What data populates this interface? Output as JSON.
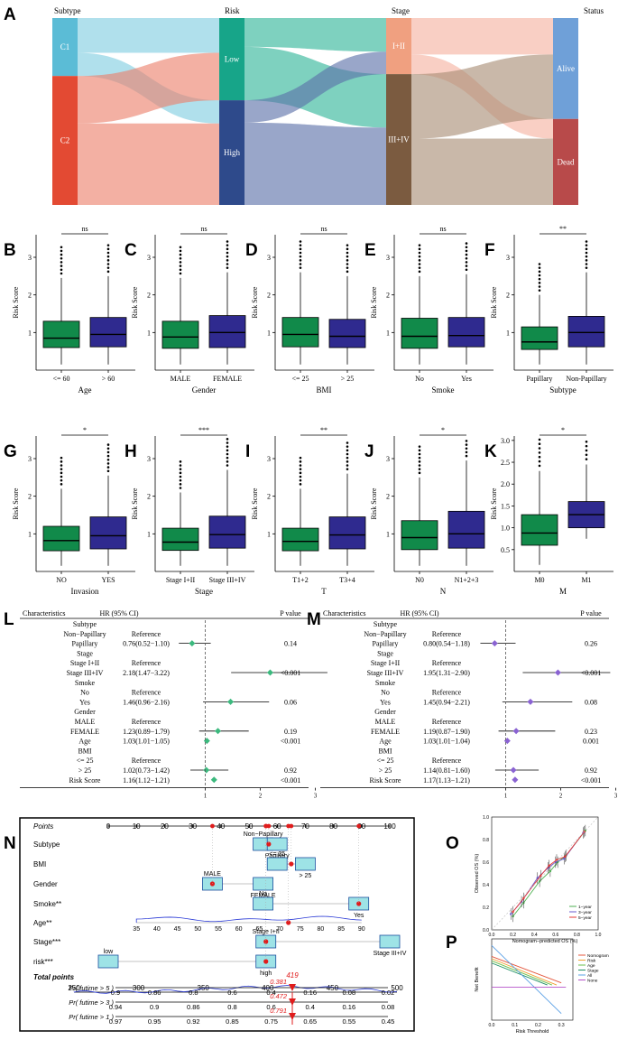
{
  "figure": {
    "panel_letters": [
      "A",
      "B",
      "C",
      "D",
      "E",
      "F",
      "G",
      "H",
      "I",
      "J",
      "K",
      "L",
      "M",
      "N",
      "O",
      "P"
    ]
  },
  "chart_data": [
    {
      "id": "A",
      "type": "sankey",
      "axes": [
        {
          "title": "Subtype",
          "nodes": [
            {
              "label": "C1",
              "color": "#5bbcd6"
            },
            {
              "label": "C2",
              "color": "#e34a33"
            }
          ]
        },
        {
          "title": "Risk",
          "nodes": [
            {
              "label": "Low",
              "color": "#17a589"
            },
            {
              "label": "High",
              "color": "#2e4a8b"
            }
          ]
        },
        {
          "title": "Stage",
          "nodes": [
            {
              "label": "I+II",
              "color": "#f0a080"
            },
            {
              "label": "III+IV",
              "color": "#7b5b40"
            }
          ]
        },
        {
          "title": "Status",
          "nodes": [
            {
              "label": "Alive",
              "color": "#6fa0d8"
            },
            {
              "label": "Dead",
              "color": "#b84a4a"
            }
          ]
        }
      ],
      "proportions": {
        "subtype": [
          0.31,
          0.69
        ],
        "risk": [
          0.44,
          0.56
        ],
        "stage": [
          0.3,
          0.7
        ],
        "status": [
          0.54,
          0.46
        ]
      }
    },
    {
      "type": "boxplot_group",
      "ylabel": "Risk Score",
      "yticks": [
        1,
        2,
        3
      ],
      "low_color": "#118a4a",
      "high_color": "#2f2a8f",
      "panels": [
        {
          "id": "B",
          "xlabel": "Age",
          "categories": [
            "<= 60",
            "> 60"
          ],
          "sig": "ns",
          "ylim": [
            0,
            3.6
          ],
          "boxes": [
            {
              "q1": 0.6,
              "med": 0.85,
              "q3": 1.3,
              "lo": 0.15,
              "hi": 2.45
            },
            {
              "q1": 0.62,
              "med": 0.95,
              "q3": 1.4,
              "lo": 0.15,
              "hi": 2.5
            }
          ]
        },
        {
          "id": "C",
          "xlabel": "Gender",
          "categories": [
            "MALE",
            "FEMALE"
          ],
          "sig": "ns",
          "ylim": [
            0,
            3.6
          ],
          "boxes": [
            {
              "q1": 0.58,
              "med": 0.88,
              "q3": 1.3,
              "lo": 0.15,
              "hi": 2.45
            },
            {
              "q1": 0.6,
              "med": 1.0,
              "q3": 1.45,
              "lo": 0.15,
              "hi": 2.6
            }
          ]
        },
        {
          "id": "D",
          "xlabel": "BMI",
          "categories": [
            "<= 25",
            "> 25"
          ],
          "sig": "ns",
          "ylim": [
            0,
            3.6
          ],
          "boxes": [
            {
              "q1": 0.62,
              "med": 0.95,
              "q3": 1.4,
              "lo": 0.15,
              "hi": 2.6
            },
            {
              "q1": 0.6,
              "med": 0.9,
              "q3": 1.35,
              "lo": 0.15,
              "hi": 2.5
            }
          ]
        },
        {
          "id": "E",
          "xlabel": "Smoke",
          "categories": [
            "No",
            "Yes"
          ],
          "sig": "ns",
          "ylim": [
            0,
            3.6
          ],
          "boxes": [
            {
              "q1": 0.58,
              "med": 0.9,
              "q3": 1.38,
              "lo": 0.15,
              "hi": 2.5
            },
            {
              "q1": 0.62,
              "med": 0.92,
              "q3": 1.4,
              "lo": 0.15,
              "hi": 2.55
            }
          ]
        },
        {
          "id": "F",
          "xlabel": "Subtype",
          "categories": [
            "Papillary",
            "Non-Papillary"
          ],
          "sig": "**",
          "ylim": [
            0,
            3.6
          ],
          "boxes": [
            {
              "q1": 0.55,
              "med": 0.75,
              "q3": 1.15,
              "lo": 0.15,
              "hi": 2.0
            },
            {
              "q1": 0.62,
              "med": 1.0,
              "q3": 1.43,
              "lo": 0.15,
              "hi": 2.6
            }
          ]
        },
        {
          "id": "G",
          "xlabel": "Invasion",
          "categories": [
            "NO",
            "YES"
          ],
          "sig": "*",
          "ylim": [
            0,
            3.6
          ],
          "boxes": [
            {
              "q1": 0.55,
              "med": 0.82,
              "q3": 1.2,
              "lo": 0.15,
              "hi": 2.2
            },
            {
              "q1": 0.6,
              "med": 0.95,
              "q3": 1.45,
              "lo": 0.15,
              "hi": 2.55
            }
          ]
        },
        {
          "id": "H",
          "xlabel": "Stage",
          "categories": [
            "Stage I+II",
            "Stage III+IV"
          ],
          "sig": "***",
          "ylim": [
            0,
            3.6
          ],
          "boxes": [
            {
              "q1": 0.56,
              "med": 0.78,
              "q3": 1.15,
              "lo": 0.15,
              "hi": 2.1
            },
            {
              "q1": 0.62,
              "med": 0.98,
              "q3": 1.47,
              "lo": 0.15,
              "hi": 2.7
            }
          ]
        },
        {
          "id": "I",
          "xlabel": "T",
          "categories": [
            "T1+2",
            "T3+4"
          ],
          "sig": "**",
          "ylim": [
            0,
            3.6
          ],
          "boxes": [
            {
              "q1": 0.55,
              "med": 0.8,
              "q3": 1.15,
              "lo": 0.15,
              "hi": 2.2
            },
            {
              "q1": 0.6,
              "med": 0.97,
              "q3": 1.45,
              "lo": 0.15,
              "hi": 2.6
            }
          ]
        },
        {
          "id": "J",
          "xlabel": "N",
          "categories": [
            "N0",
            "N1+2+3"
          ],
          "sig": "*",
          "ylim": [
            0,
            3.6
          ],
          "boxes": [
            {
              "q1": 0.58,
              "med": 0.9,
              "q3": 1.35,
              "lo": 0.15,
              "hi": 2.5
            },
            {
              "q1": 0.62,
              "med": 1.0,
              "q3": 1.6,
              "lo": 0.15,
              "hi": 2.95
            }
          ]
        },
        {
          "id": "K",
          "xlabel": "M",
          "categories": [
            "M0",
            "M1"
          ],
          "sig": "*",
          "ylim": [
            0,
            3.1
          ],
          "yticks": [
            0.5,
            1.0,
            1.5,
            2.0,
            2.5,
            3.0
          ],
          "tick_labels": [
            "0.5",
            "1.0",
            "1.5",
            "2.0",
            "2.5",
            "3.0"
          ],
          "boxes": [
            {
              "q1": 0.6,
              "med": 0.88,
              "q3": 1.3,
              "lo": 0.15,
              "hi": 2.3
            },
            {
              "q1": 1.0,
              "med": 1.3,
              "q3": 1.6,
              "lo": 0.75,
              "hi": 2.45
            }
          ]
        }
      ]
    },
    {
      "id": "L",
      "type": "forest",
      "headers": [
        "Characteristics",
        "HR (95% CI)",
        "P value"
      ],
      "marker_color": "#3cb97e",
      "xticks": [
        1,
        2,
        3
      ],
      "rows": [
        {
          "label": "Subtype"
        },
        {
          "label": "Non−Papillary",
          "ci": "Reference"
        },
        {
          "label": "Papillary",
          "ci": "0.76(0.52−1.10)",
          "p": "0.14",
          "hr": 0.76,
          "lo": 0.52,
          "hi": 1.1
        },
        {
          "label": "Stage"
        },
        {
          "label": "Stage I+II",
          "ci": "Reference"
        },
        {
          "label": "Stage III+IV",
          "ci": "2.18(1.47−3.22)",
          "p": "<0.001",
          "hr": 2.18,
          "lo": 1.47,
          "hi": 3.22
        },
        {
          "label": "Smoke"
        },
        {
          "label": "No",
          "ci": "Reference"
        },
        {
          "label": "Yes",
          "ci": "1.46(0.96−2.16)",
          "p": "0.06",
          "hr": 1.46,
          "lo": 0.96,
          "hi": 2.16
        },
        {
          "label": "Gender"
        },
        {
          "label": "MALE",
          "ci": "Reference"
        },
        {
          "label": "FEMALE",
          "ci": "1.23(0.89−1.79)",
          "p": "0.19",
          "hr": 1.23,
          "lo": 0.89,
          "hi": 1.79
        },
        {
          "label": "Age",
          "ci": "1.03(1.01−1.05)",
          "p": "<0.001",
          "hr": 1.03,
          "lo": 1.01,
          "hi": 1.05
        },
        {
          "label": "BMI"
        },
        {
          "label": "<= 25",
          "ci": "Reference"
        },
        {
          "label": "> 25",
          "ci": "1.02(0.73−1.42)",
          "p": "0.92",
          "hr": 1.02,
          "lo": 0.73,
          "hi": 1.42
        },
        {
          "label": "Risk Score",
          "ci": "1.16(1.12−1.21)",
          "p": "<0.001",
          "hr": 1.16,
          "lo": 1.12,
          "hi": 1.21
        }
      ]
    },
    {
      "id": "M",
      "type": "forest",
      "headers": [
        "Characteristics",
        "HR (95% CI)",
        "P value"
      ],
      "marker_color": "#8a63d2",
      "xticks": [
        1,
        2,
        3
      ],
      "rows": [
        {
          "label": "Subtype"
        },
        {
          "label": "Non−Papillary",
          "ci": "Reference"
        },
        {
          "label": "Papillary",
          "ci": "0.80(0.54−1.18)",
          "p": "0.26",
          "hr": 0.8,
          "lo": 0.54,
          "hi": 1.18
        },
        {
          "label": "Stage"
        },
        {
          "label": "Stage I+II",
          "ci": "Reference"
        },
        {
          "label": "Stage III+IV",
          "ci": "1.95(1.31−2.90)",
          "p": "<0.001",
          "hr": 1.95,
          "lo": 1.31,
          "hi": 2.9
        },
        {
          "label": "Smoke"
        },
        {
          "label": "No",
          "ci": "Reference"
        },
        {
          "label": "Yes",
          "ci": "1.45(0.94−2.21)",
          "p": "0.08",
          "hr": 1.45,
          "lo": 0.94,
          "hi": 2.21
        },
        {
          "label": "Gender"
        },
        {
          "label": "MALE",
          "ci": "Reference"
        },
        {
          "label": "FEMALE",
          "ci": "1.19(0.87−1.90)",
          "p": "0.23",
          "hr": 1.19,
          "lo": 0.87,
          "hi": 1.9
        },
        {
          "label": "Age",
          "ci": "1.03(1.01−1.04)",
          "p": "0.001",
          "hr": 1.03,
          "lo": 1.01,
          "hi": 1.04
        },
        {
          "label": "BMI"
        },
        {
          "label": "<= 25",
          "ci": "Reference"
        },
        {
          "label": "> 25",
          "ci": "1.14(0.81−1.60)",
          "p": "0.92",
          "hr": 1.14,
          "lo": 0.81,
          "hi": 1.6
        },
        {
          "label": "Risk Score",
          "ci": "1.17(1.13−1.21)",
          "p": "<0.001",
          "hr": 1.17,
          "lo": 1.13,
          "hi": 1.21
        }
      ]
    },
    {
      "id": "N",
      "type": "nomogram",
      "points_label": "Points",
      "points_ticks": [
        "0",
        "10",
        "20",
        "30",
        "40",
        "50",
        "60",
        "70",
        "80",
        "90",
        "100"
      ],
      "variables": [
        {
          "name": "Subtype",
          "labels": [
            "Non−Papillary",
            "Papillary"
          ],
          "selected_points": 57
        },
        {
          "name": "BMI",
          "labels": [
            "<= 25",
            "> 25"
          ],
          "selected_points": 65
        },
        {
          "name": "Gender",
          "labels": [
            "MALE",
            "FEMALE"
          ],
          "selected_points": 37
        },
        {
          "name": "Smoke**",
          "labels": [
            "No",
            "Yes"
          ],
          "selected_points": 89
        },
        {
          "name": "Age**",
          "ticks": [
            "35",
            "40",
            "45",
            "50",
            "55",
            "60",
            "65",
            "70",
            "75",
            "80",
            "85",
            "90"
          ],
          "selected_points": 64
        },
        {
          "name": "Stage***",
          "labels": [
            "Stage I+II",
            "Stage III+IV"
          ],
          "selected_points": 56
        },
        {
          "name": "risk***",
          "labels": [
            "low",
            "high"
          ],
          "selected_points": 56
        }
      ],
      "total_label": "Total points",
      "total_ticks": [
        "250",
        "300",
        "350",
        "400",
        "450",
        "500"
      ],
      "total_value": "419",
      "prob_rows": [
        {
          "label": "Pr( futime > 5 )",
          "ticks": [
            "0.9",
            "0.86",
            "0.8",
            "0.6",
            "0.4",
            "0.16",
            "0.08",
            "0.02"
          ],
          "value": "0.381"
        },
        {
          "label": "Pr( futime > 3 )",
          "ticks": [
            "0.94",
            "0.9",
            "0.86",
            "0.8",
            "0.6",
            "0.4",
            "0.16",
            "0.08"
          ],
          "value": "0.472"
        },
        {
          "label": "Pr( futime > 1 )",
          "ticks": [
            "0.97",
            "0.95",
            "0.92",
            "0.85",
            "0.75",
            "0.65",
            "0.55",
            "0.45"
          ],
          "value": "0.791"
        }
      ]
    },
    {
      "id": "O",
      "type": "line",
      "title": "Calibration",
      "xlabel": "Nomogram−predicted OS (%)",
      "ylabel": "Observed OS (%)",
      "xticks": [
        "0.0",
        "0.2",
        "0.4",
        "0.6",
        "0.8",
        "1.0"
      ],
      "yticks": [
        "0.0",
        "0.2",
        "0.4",
        "0.6",
        "0.8",
        "1.0"
      ],
      "series": [
        {
          "name": "1−year",
          "color": "#4caf50",
          "x": [
            0.2,
            0.3,
            0.45,
            0.55,
            0.62,
            0.7,
            0.88
          ],
          "y": [
            0.12,
            0.24,
            0.43,
            0.52,
            0.6,
            0.66,
            0.88
          ]
        },
        {
          "name": "3−year",
          "color": "#6a5acd",
          "x": [
            0.18,
            0.28,
            0.43,
            0.53,
            0.6,
            0.68,
            0.86
          ],
          "y": [
            0.14,
            0.25,
            0.46,
            0.55,
            0.6,
            0.63,
            0.86
          ]
        },
        {
          "name": "5−year",
          "color": "#e53935",
          "x": [
            0.2,
            0.3,
            0.46,
            0.54,
            0.61,
            0.69,
            0.87
          ],
          "y": [
            0.16,
            0.28,
            0.48,
            0.57,
            0.62,
            0.65,
            0.87
          ]
        }
      ]
    },
    {
      "id": "P",
      "type": "line",
      "title": "Decision curve",
      "xlabel": "Risk Threshold",
      "ylabel": "Net Benefit",
      "xticks": [
        "0.0",
        "0.1",
        "0.2",
        "0.3"
      ],
      "series": [
        {
          "name": "Nomogram",
          "color": "#e4573d",
          "x": [
            0.0,
            0.3
          ],
          "y": [
            0.14,
            0.02
          ]
        },
        {
          "name": "Risk",
          "color": "#f0a030",
          "x": [
            0.0,
            0.28
          ],
          "y": [
            0.13,
            0.01
          ]
        },
        {
          "name": "Age",
          "color": "#6abf4b",
          "x": [
            0.0,
            0.26
          ],
          "y": [
            0.12,
            0.01
          ]
        },
        {
          "name": "Stage",
          "color": "#1e8f63",
          "x": [
            0.0,
            0.24
          ],
          "y": [
            0.11,
            0.01
          ]
        },
        {
          "name": "All",
          "color": "#5aa0e6",
          "x": [
            0.0,
            0.3
          ],
          "y": [
            0.19,
            -0.12
          ]
        },
        {
          "name": "None",
          "color": "#b452c8",
          "x": [
            0.0,
            0.32
          ],
          "y": [
            0.0,
            0.0
          ]
        }
      ]
    }
  ]
}
